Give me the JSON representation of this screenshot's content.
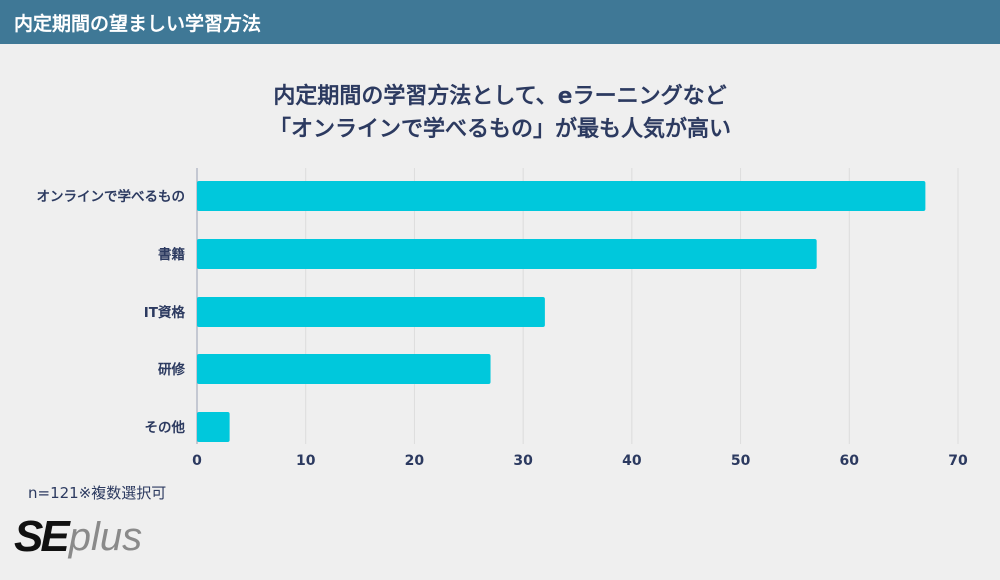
{
  "header": {
    "title": "内定期間の望ましい学習方法"
  },
  "footnote": "n=121※複数選択可",
  "logo": {
    "se": "SE",
    "plus": "plus"
  },
  "colors": {
    "bar": "#00c8dc",
    "header": "#3f7896",
    "text": "#2c3a60",
    "grid": "#dcdcdc"
  },
  "chart_data": {
    "type": "bar",
    "orientation": "horizontal",
    "title_lines": [
      "内定期間の学習方法として、eラーニングなど",
      "「オンラインで学べるもの」が最も人気が高い"
    ],
    "categories": [
      "オンラインで学べるもの",
      "書籍",
      "IT資格",
      "研修",
      "その他"
    ],
    "values": [
      67,
      57,
      32,
      27,
      3
    ],
    "xlim": [
      0,
      70
    ],
    "xticks": [
      0,
      10,
      20,
      30,
      40,
      50,
      60,
      70
    ],
    "grid": true
  }
}
